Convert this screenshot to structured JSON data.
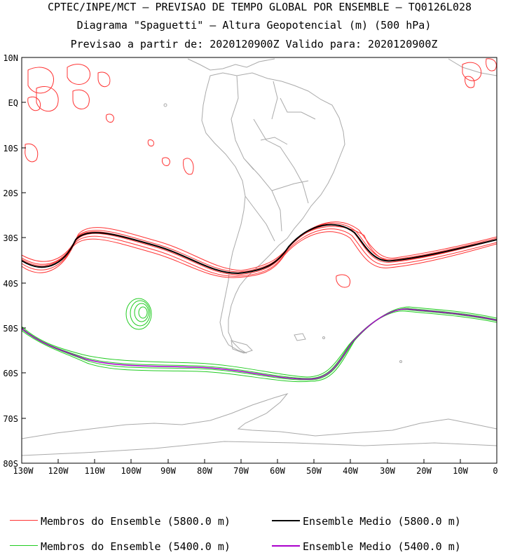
{
  "titles": {
    "line1": "CPTEC/INPE/MCT – PREVISAO DE TEMPO GLOBAL POR ENSEMBLE – TQ0126L028",
    "line2": "Diagrama \"Spaguetti\" – Altura Geopotencial (m) (500 hPa)",
    "line3": "Previsao a partir de: 2020120900Z  Valido para: 2020120900Z"
  },
  "axes": {
    "lat_labels": [
      "10N",
      "EQ",
      "10S",
      "20S",
      "30S",
      "40S",
      "50S",
      "60S",
      "70S",
      "80S"
    ],
    "lon_labels": [
      "130W",
      "120W",
      "110W",
      "100W",
      "90W",
      "80W",
      "70W",
      "60W",
      "50W",
      "40W",
      "30W",
      "20W",
      "10W",
      "0"
    ]
  },
  "map_data": {
    "region": "South America / South Atlantic / South Pacific",
    "lon_range": [
      -130,
      0
    ],
    "lat_range": [
      -80,
      10
    ],
    "contours": [
      {
        "name": "Membros do Ensemble",
        "level_m": 5800.0,
        "color": "#ff3333"
      },
      {
        "name": "Ensemble Medio",
        "level_m": 5800.0,
        "color": "#000000"
      },
      {
        "name": "Membros do Ensemble",
        "level_m": 5400.0,
        "color": "#22cc22"
      },
      {
        "name": "Ensemble Medio",
        "level_m": 5400.0,
        "color": "#aa00cc"
      }
    ]
  },
  "legend": {
    "red_members": "Membros do Ensemble (5800.0 m)",
    "black_mean": "Ensemble Medio (5800.0 m)",
    "green_members": "Membros do Ensemble (5400.0 m)",
    "purple_mean": "Ensemble Medio (5400.0 m)"
  },
  "colors": {
    "red": "#ff3333",
    "green": "#22cc22",
    "black": "#000000",
    "purple": "#aa00cc",
    "coast": "#aaaaaa"
  }
}
